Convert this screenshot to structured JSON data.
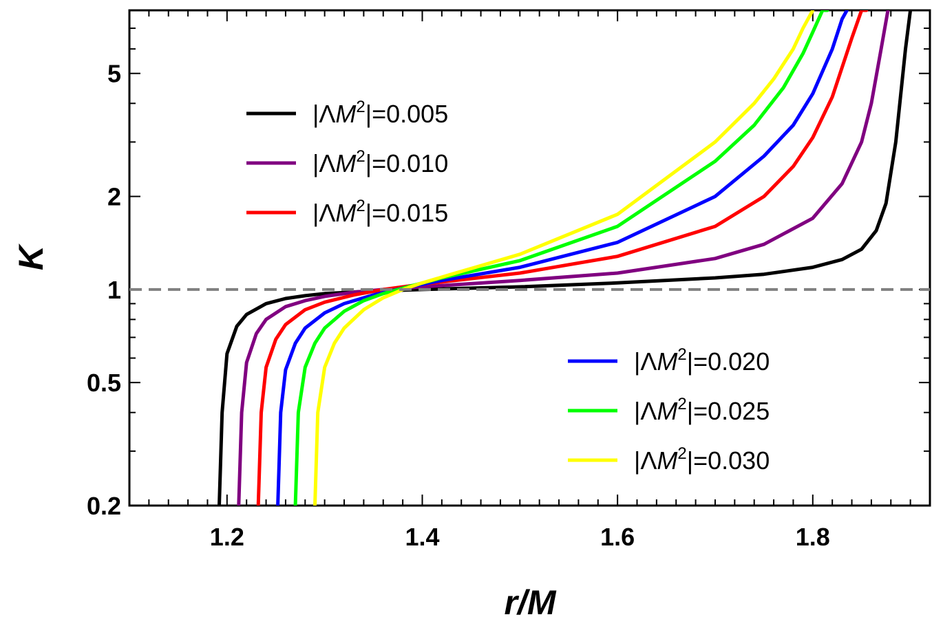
{
  "chart_data": {
    "type": "line",
    "xlabel": "r/M",
    "ylabel": "K",
    "xlim": [
      1.1,
      1.92
    ],
    "ylim": [
      0.2,
      8.0
    ],
    "y_scale": "log",
    "grid": false,
    "x_ticks": [
      {
        "value": 1.2,
        "label": "1.2"
      },
      {
        "value": 1.4,
        "label": "1.4"
      },
      {
        "value": 1.6,
        "label": "1.6"
      },
      {
        "value": 1.8,
        "label": "1.8"
      }
    ],
    "y_ticks": [
      {
        "value": 0.2,
        "label": "0.2"
      },
      {
        "value": 0.5,
        "label": "0.5"
      },
      {
        "value": 1,
        "label": "1"
      },
      {
        "value": 2,
        "label": "2"
      },
      {
        "value": 5,
        "label": "5"
      }
    ],
    "reference_line": {
      "y": 1,
      "style": "dashed",
      "color": "#808080"
    },
    "legend_left_position": "upper-left",
    "legend_right_position": "lower-right",
    "series": [
      {
        "name": "|ΛM²|=0.005",
        "name_prefix": "|Λ",
        "name_var": "M",
        "name_sup": "2",
        "name_suffix": "|=0.005",
        "color": "#000000",
        "legend": "left",
        "x": [
          1.192,
          1.195,
          1.2,
          1.21,
          1.22,
          1.24,
          1.26,
          1.28,
          1.3,
          1.34,
          1.4,
          1.5,
          1.6,
          1.7,
          1.75,
          1.8,
          1.83,
          1.85,
          1.865,
          1.875,
          1.885,
          1.895,
          1.9
        ],
        "y": [
          0.2,
          0.4,
          0.62,
          0.76,
          0.83,
          0.9,
          0.935,
          0.955,
          0.97,
          0.985,
          1.0,
          1.02,
          1.05,
          1.09,
          1.12,
          1.18,
          1.25,
          1.35,
          1.55,
          1.9,
          3.0,
          6.0,
          8.0
        ]
      },
      {
        "name": "|ΛM²|=0.010",
        "name_prefix": "|Λ",
        "name_var": "M",
        "name_sup": "2",
        "name_suffix": "|=0.010",
        "color": "#800080",
        "legend": "left",
        "x": [
          1.212,
          1.215,
          1.22,
          1.23,
          1.24,
          1.26,
          1.28,
          1.3,
          1.33,
          1.36,
          1.4,
          1.5,
          1.6,
          1.7,
          1.75,
          1.8,
          1.83,
          1.85,
          1.86,
          1.87,
          1.877
        ],
        "y": [
          0.2,
          0.4,
          0.58,
          0.72,
          0.8,
          0.88,
          0.92,
          0.95,
          0.98,
          1.0,
          1.02,
          1.07,
          1.13,
          1.26,
          1.4,
          1.7,
          2.2,
          3.0,
          4.0,
          6.0,
          8.0
        ]
      },
      {
        "name": "|ΛM²|=0.015",
        "name_prefix": "|Λ",
        "name_var": "M",
        "name_sup": "2",
        "name_suffix": "|=0.015",
        "color": "#ff0000",
        "legend": "left",
        "x": [
          1.232,
          1.235,
          1.24,
          1.25,
          1.26,
          1.28,
          1.3,
          1.33,
          1.36,
          1.4,
          1.5,
          1.6,
          1.7,
          1.75,
          1.78,
          1.8,
          1.82,
          1.84,
          1.85,
          1.855
        ],
        "y": [
          0.2,
          0.4,
          0.56,
          0.69,
          0.77,
          0.86,
          0.91,
          0.96,
          1.0,
          1.04,
          1.13,
          1.28,
          1.6,
          2.0,
          2.5,
          3.1,
          4.2,
          6.5,
          8.0,
          8.0
        ]
      },
      {
        "name": "|ΛM²|=0.020",
        "name_prefix": "|Λ",
        "name_var": "M",
        "name_sup": "2",
        "name_suffix": "|=0.020",
        "color": "#0000ff",
        "legend": "right",
        "x": [
          1.252,
          1.255,
          1.26,
          1.27,
          1.28,
          1.3,
          1.32,
          1.35,
          1.38,
          1.42,
          1.5,
          1.6,
          1.7,
          1.75,
          1.78,
          1.8,
          1.82,
          1.83,
          1.835
        ],
        "y": [
          0.2,
          0.4,
          0.55,
          0.67,
          0.75,
          0.84,
          0.9,
          0.96,
          1.01,
          1.07,
          1.18,
          1.42,
          2.0,
          2.7,
          3.4,
          4.3,
          6.0,
          7.5,
          8.0
        ]
      },
      {
        "name": "|ΛM²|=0.025",
        "name_prefix": "|Λ",
        "name_var": "M",
        "name_sup": "2",
        "name_suffix": "|=0.025",
        "color": "#00ff00",
        "legend": "right",
        "x": [
          1.27,
          1.273,
          1.28,
          1.29,
          1.3,
          1.32,
          1.34,
          1.36,
          1.39,
          1.42,
          1.5,
          1.6,
          1.7,
          1.74,
          1.77,
          1.79,
          1.8,
          1.81,
          1.815
        ],
        "y": [
          0.2,
          0.4,
          0.56,
          0.67,
          0.75,
          0.85,
          0.92,
          0.97,
          1.03,
          1.09,
          1.24,
          1.6,
          2.6,
          3.4,
          4.5,
          5.8,
          6.8,
          8.0,
          8.0
        ]
      },
      {
        "name": "|ΛM²|=0.030",
        "name_prefix": "|Λ",
        "name_var": "M",
        "name_sup": "2",
        "name_suffix": "|=0.030",
        "color": "#ffff00",
        "legend": "right",
        "x": [
          1.29,
          1.293,
          1.3,
          1.31,
          1.32,
          1.34,
          1.36,
          1.38,
          1.4,
          1.43,
          1.5,
          1.6,
          1.7,
          1.74,
          1.76,
          1.78,
          1.79,
          1.8
        ],
        "y": [
          0.2,
          0.4,
          0.56,
          0.67,
          0.75,
          0.86,
          0.94,
          1.0,
          1.05,
          1.12,
          1.3,
          1.75,
          3.0,
          4.0,
          4.8,
          6.0,
          7.0,
          8.0
        ]
      }
    ]
  }
}
